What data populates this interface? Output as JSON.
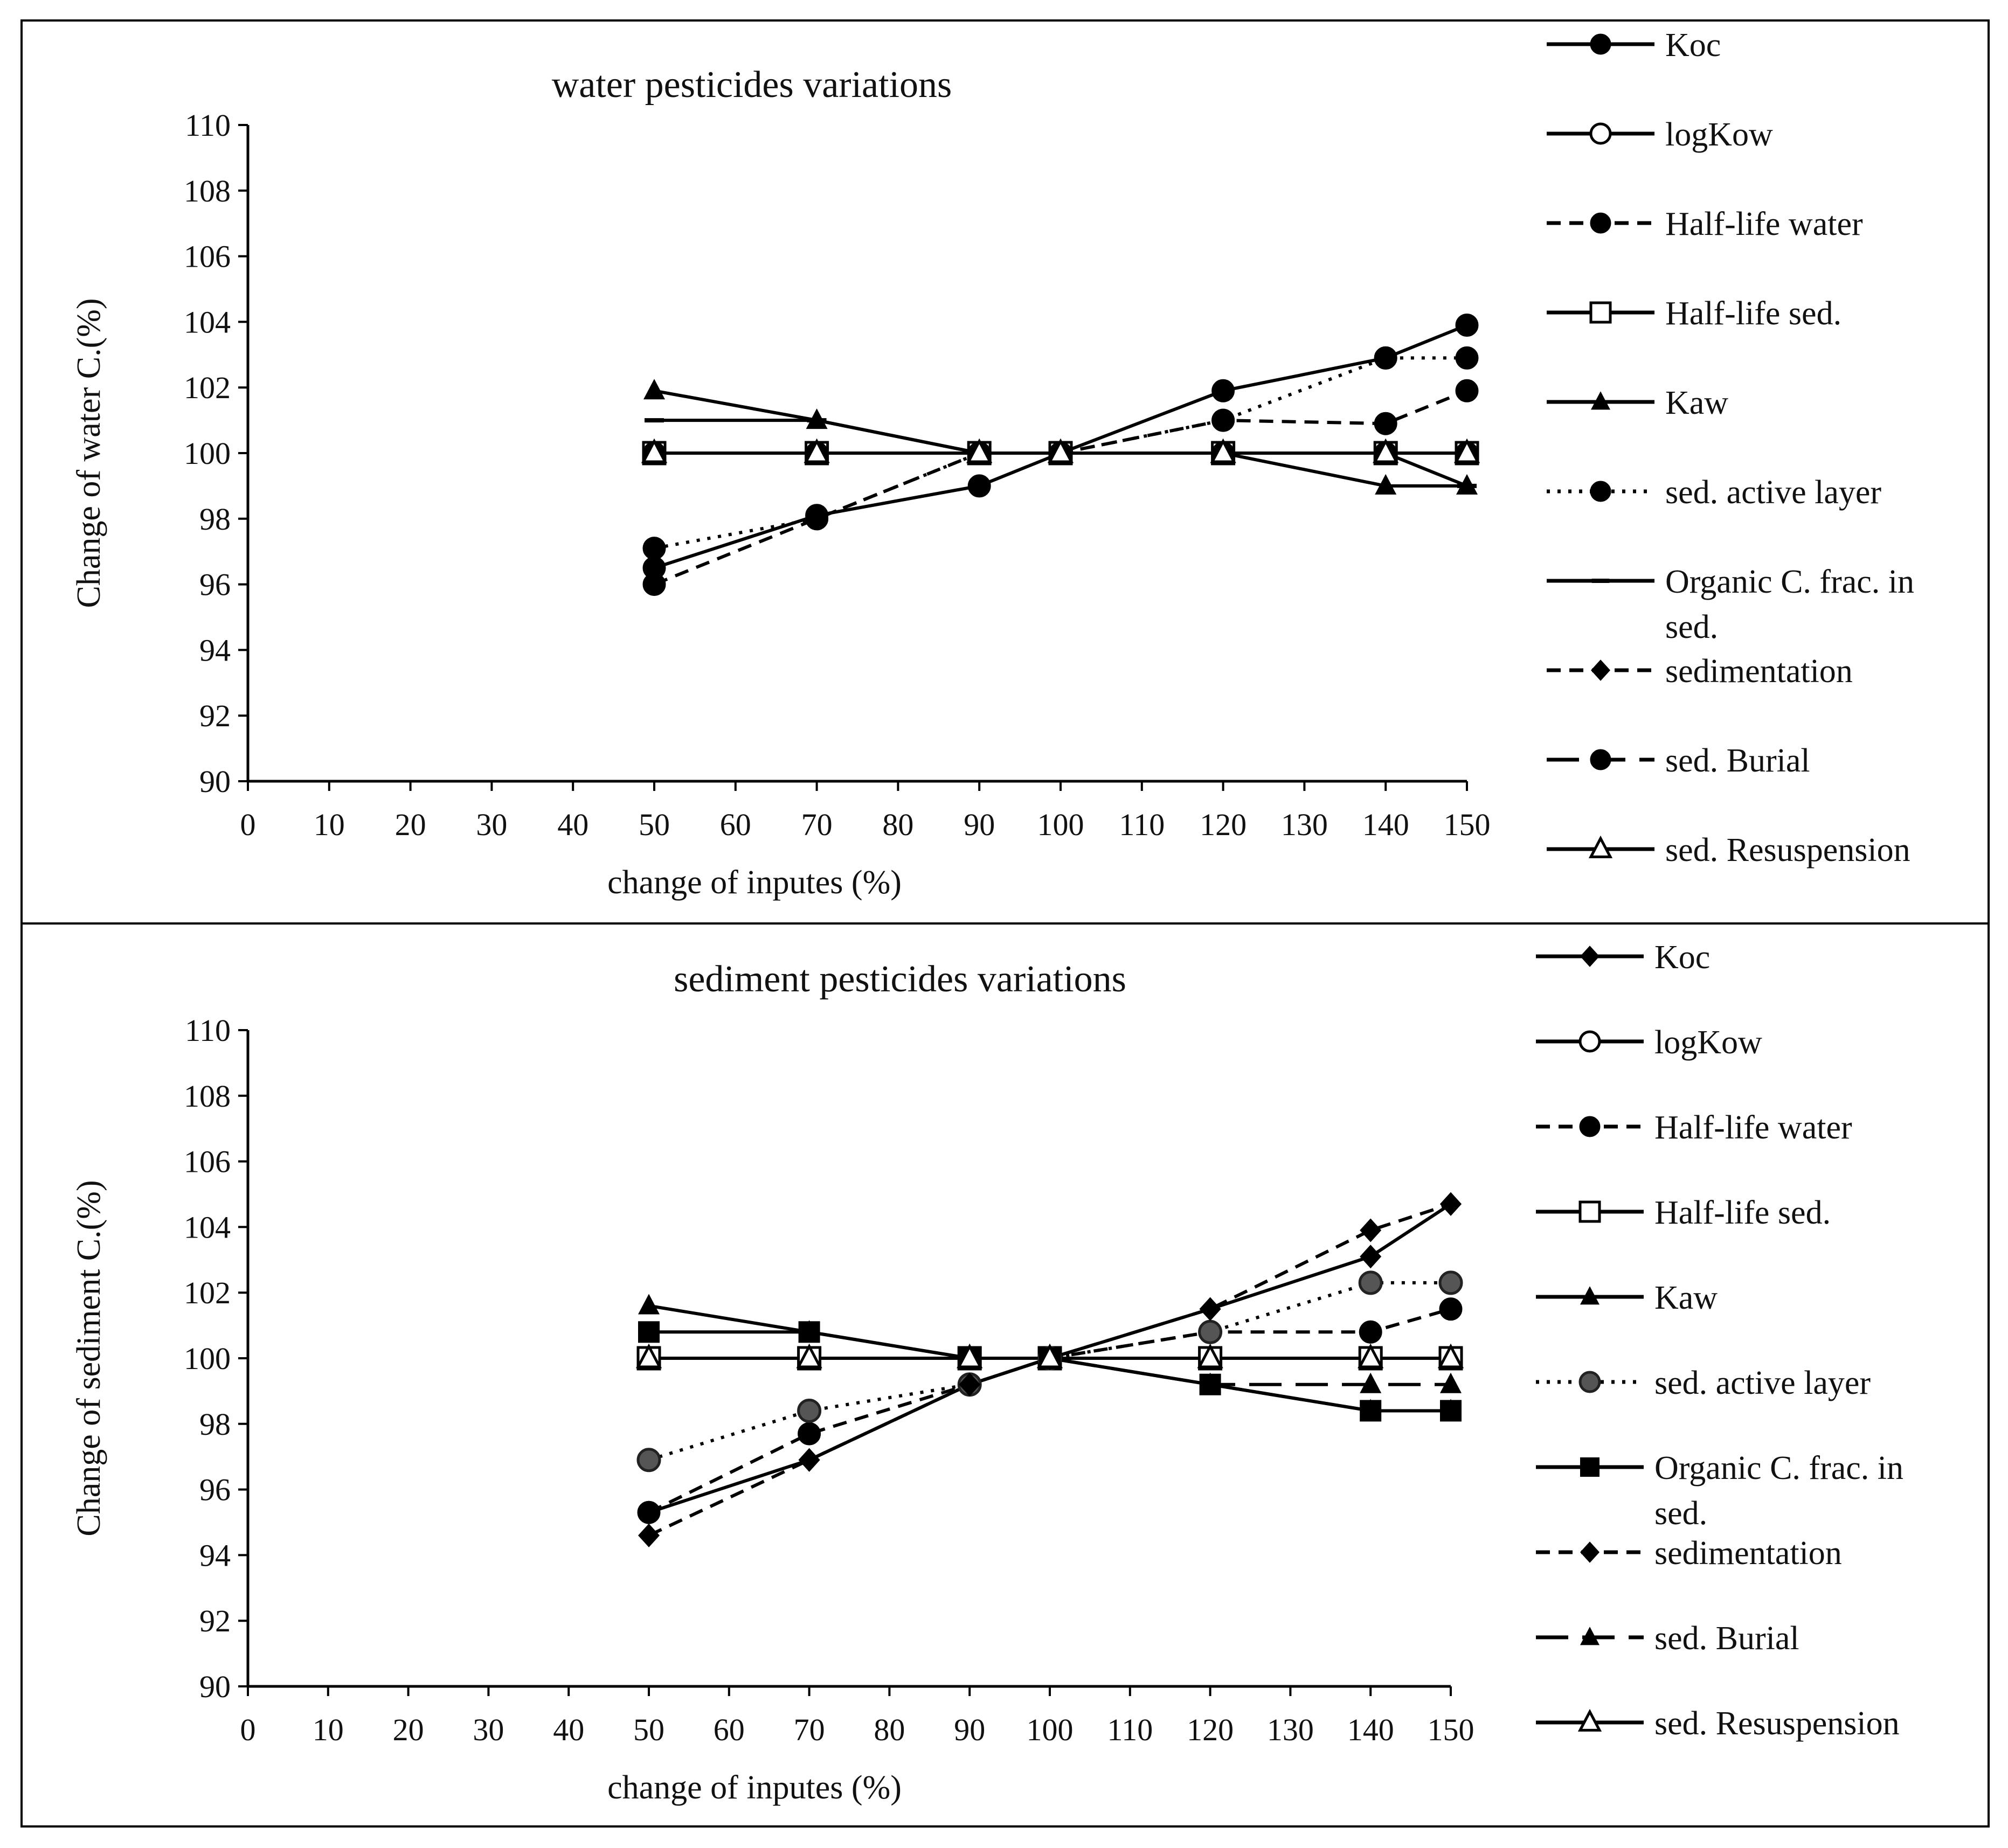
{
  "chart_data": [
    {
      "type": "line",
      "title": "water pesticides variations",
      "xlabel": "change of inputes (%)",
      "ylabel": "Change of water C.(%)",
      "xlim": [
        0,
        150
      ],
      "ylim": [
        90,
        110
      ],
      "xticks": [
        0,
        10,
        20,
        30,
        40,
        50,
        60,
        70,
        80,
        90,
        100,
        110,
        120,
        130,
        140,
        150
      ],
      "yticks": [
        90,
        92,
        94,
        96,
        98,
        100,
        102,
        104,
        106,
        108,
        110
      ],
      "x": [
        50,
        70,
        90,
        100,
        120,
        140,
        150
      ],
      "legend_position": "right",
      "series": [
        {
          "name": "Koc",
          "marker": "circle-filled",
          "dash": "solid",
          "values": [
            96.5,
            98.1,
            99.0,
            100,
            101.9,
            102.9,
            103.9
          ]
        },
        {
          "name": "logKow",
          "marker": "circle-open",
          "dash": "solid",
          "values": [
            100,
            100,
            100,
            100,
            100,
            100,
            100
          ]
        },
        {
          "name": "Half-life water",
          "marker": "circle-filled",
          "dash": "dashed",
          "values": [
            96.0,
            98.0,
            100,
            100,
            101.0,
            100.9,
            101.9
          ]
        },
        {
          "name": "Half-life sed.",
          "marker": "square-open",
          "dash": "solid",
          "values": [
            100,
            100,
            100,
            100,
            100,
            100,
            100
          ]
        },
        {
          "name": "Kaw",
          "marker": "triangle-filled",
          "dash": "solid",
          "values": [
            101.9,
            101.0,
            100,
            100,
            100,
            99.0,
            99.0
          ]
        },
        {
          "name": "sed. active layer",
          "marker": "circle-filled",
          "dash": "dotted",
          "values": [
            97.1,
            98.0,
            100,
            100,
            101.0,
            102.9,
            102.9
          ]
        },
        {
          "name": "Organic C. frac. in sed.",
          "marker": "dash",
          "dash": "solid",
          "values": [
            101.0,
            101.0,
            100,
            100,
            100,
            100,
            99.0
          ]
        },
        {
          "name": "sedimentation",
          "marker": "diamond-filled",
          "dash": "dashed",
          "values": [
            100,
            100,
            100,
            100,
            100,
            100,
            100
          ]
        },
        {
          "name": "sed. Burial",
          "marker": "circle-filled",
          "dash": "longdash",
          "values": [
            100,
            100,
            100,
            100,
            100,
            100,
            100
          ]
        },
        {
          "name": "sed. Resuspension",
          "marker": "triangle-open",
          "dash": "solid",
          "values": [
            100,
            100,
            100,
            100,
            100,
            100,
            100
          ]
        }
      ]
    },
    {
      "type": "line",
      "title": "sediment pesticides variations",
      "xlabel": "change of inputes (%)",
      "ylabel": "Change of sediment C.(%)",
      "xlim": [
        0,
        150
      ],
      "ylim": [
        90,
        110
      ],
      "xticks": [
        0,
        10,
        20,
        30,
        40,
        50,
        60,
        70,
        80,
        90,
        100,
        110,
        120,
        130,
        140,
        150
      ],
      "yticks": [
        90,
        92,
        94,
        96,
        98,
        100,
        102,
        104,
        106,
        108,
        110
      ],
      "x": [
        50,
        70,
        90,
        100,
        120,
        140,
        150
      ],
      "legend_position": "right",
      "series": [
        {
          "name": "Koc",
          "marker": "diamond-filled",
          "dash": "solid",
          "values": [
            95.3,
            96.9,
            99.2,
            100,
            101.5,
            103.1,
            104.7
          ]
        },
        {
          "name": "logKow",
          "marker": "circle-open",
          "dash": "solid",
          "values": [
            100,
            100,
            100,
            100,
            100,
            100,
            100
          ]
        },
        {
          "name": "Half-life water",
          "marker": "circle-filled",
          "dash": "dashed",
          "values": [
            95.3,
            97.7,
            99.2,
            100,
            100.8,
            100.8,
            101.5
          ]
        },
        {
          "name": "Half-life sed.",
          "marker": "square-open",
          "dash": "solid",
          "values": [
            100,
            100,
            100,
            100,
            100,
            100,
            100
          ]
        },
        {
          "name": "Kaw",
          "marker": "triangle-filled",
          "dash": "solid",
          "values": [
            101.6,
            100.8,
            100,
            100,
            99.2,
            98.4,
            98.4
          ]
        },
        {
          "name": "sed. active layer",
          "marker": "circle-grey",
          "dash": "dotted",
          "values": [
            96.9,
            98.4,
            99.2,
            100,
            100.8,
            102.3,
            102.3
          ]
        },
        {
          "name": "Organic C. frac. in sed.",
          "marker": "square-filled",
          "dash": "solid",
          "values": [
            100.8,
            100.8,
            100,
            100,
            99.2,
            98.4,
            98.4
          ]
        },
        {
          "name": "sedimentation",
          "marker": "diamond-filled",
          "dash": "dashed",
          "values": [
            94.6,
            96.9,
            99.2,
            100,
            101.5,
            103.9,
            104.7
          ]
        },
        {
          "name": "sed. Burial",
          "marker": "triangle-filled",
          "dash": "longdash",
          "values": [
            100,
            100,
            100,
            100,
            99.2,
            99.2,
            99.2
          ]
        },
        {
          "name": "sed. Resuspension",
          "marker": "triangle-open",
          "dash": "solid",
          "values": [
            100,
            100,
            100,
            100,
            100,
            100,
            100
          ]
        }
      ]
    }
  ]
}
